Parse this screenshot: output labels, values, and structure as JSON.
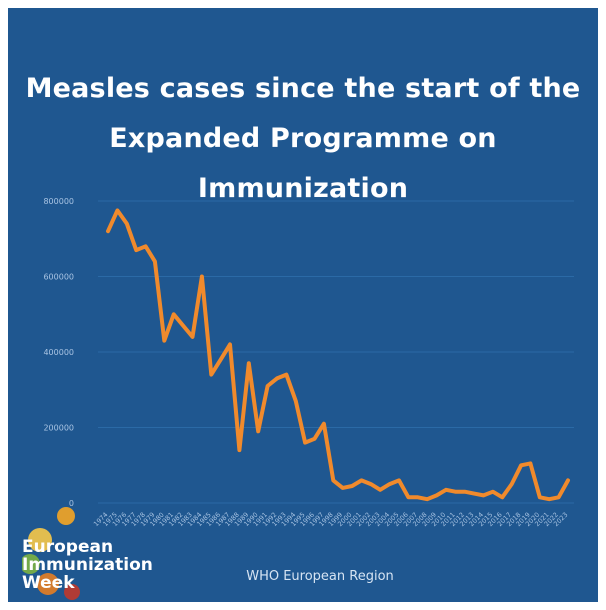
{
  "header": {
    "title_line1": "Measles cases since the start of the",
    "title_line2": "Expanded Programme on Immunization"
  },
  "logo": {
    "line1": "European",
    "line2": "Immunization",
    "line3": "Week",
    "dot_colors": [
      "#f5a623",
      "#f7c948",
      "#7cb342",
      "#e67e22",
      "#c0392b"
    ]
  },
  "colors": {
    "background": "#1f5790",
    "line": "#f08a2c",
    "grid": "#2b6aa6",
    "text": "#ffffff",
    "axis_text": "#a9c4e3"
  },
  "chart_data": {
    "type": "line",
    "title": "Measles cases since the start of the Expanded Programme on Immunization",
    "xlabel": "WHO European Region",
    "ylabel": "",
    "ylim": [
      0,
      800000
    ],
    "yticks": [
      0,
      200000,
      400000,
      600000,
      800000
    ],
    "ytick_labels": [
      "0",
      "200000",
      "400000",
      "600000",
      "800000"
    ],
    "grid": true,
    "legend": "none",
    "x": [
      1974,
      1975,
      1976,
      1977,
      1978,
      1979,
      1980,
      1981,
      1982,
      1983,
      1984,
      1985,
      1986,
      1987,
      1988,
      1989,
      1990,
      1991,
      1992,
      1993,
      1994,
      1995,
      1996,
      1997,
      1998,
      1999,
      2000,
      2001,
      2002,
      2003,
      2004,
      2005,
      2006,
      2007,
      2008,
      2009,
      2010,
      2011,
      2012,
      2013,
      2014,
      2015,
      2016,
      2017,
      2018,
      2019,
      2020,
      2021,
      2022,
      2023
    ],
    "series": [
      {
        "values": [
          720000,
          775000,
          740000,
          670000,
          680000,
          640000,
          430000,
          500000,
          470000,
          440000,
          600000,
          340000,
          380000,
          420000,
          140000,
          370000,
          190000,
          310000,
          330000,
          340000,
          270000,
          160000,
          170000,
          210000,
          60000,
          40000,
          45000,
          60000,
          50000,
          35000,
          50000,
          60000,
          15000,
          15000,
          10000,
          20000,
          35000,
          30000,
          30000,
          25000,
          20000,
          30000,
          15000,
          50000,
          100000,
          105000,
          15000,
          10000,
          15000,
          60000
        ]
      }
    ]
  }
}
